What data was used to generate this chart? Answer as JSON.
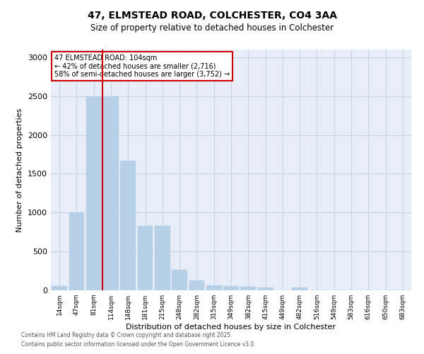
{
  "title_line1": "47, ELMSTEAD ROAD, COLCHESTER, CO4 3AA",
  "title_line2": "Size of property relative to detached houses in Colchester",
  "xlabel": "Distribution of detached houses by size in Colchester",
  "ylabel": "Number of detached properties",
  "categories": [
    "14sqm",
    "47sqm",
    "81sqm",
    "114sqm",
    "148sqm",
    "181sqm",
    "215sqm",
    "248sqm",
    "282sqm",
    "315sqm",
    "349sqm",
    "382sqm",
    "415sqm",
    "449sqm",
    "482sqm",
    "516sqm",
    "549sqm",
    "583sqm",
    "616sqm",
    "650sqm",
    "683sqm"
  ],
  "values": [
    55,
    1000,
    2500,
    2500,
    1670,
    830,
    830,
    265,
    130,
    60,
    55,
    45,
    40,
    0,
    35,
    0,
    0,
    0,
    0,
    0,
    0
  ],
  "bar_color": "#b8cfe8",
  "bar_edgecolor": "#b8cfe8",
  "vline_color": "#cc0000",
  "vline_position": 2.5,
  "annotation_text": "47 ELMSTEAD ROAD: 104sqm\n← 42% of detached houses are smaller (2,716)\n58% of semi-detached houses are larger (3,752) →",
  "annotation_box_edgecolor": "#cc0000",
  "ylim": [
    0,
    3100
  ],
  "yticks": [
    0,
    500,
    1000,
    1500,
    2000,
    2500,
    3000
  ],
  "grid_color": "#c8d4e4",
  "background_color": "#e8eef8",
  "footer_line1": "Contains HM Land Registry data © Crown copyright and database right 2025.",
  "footer_line2": "Contains public sector information licensed under the Open Government Licence v3.0."
}
